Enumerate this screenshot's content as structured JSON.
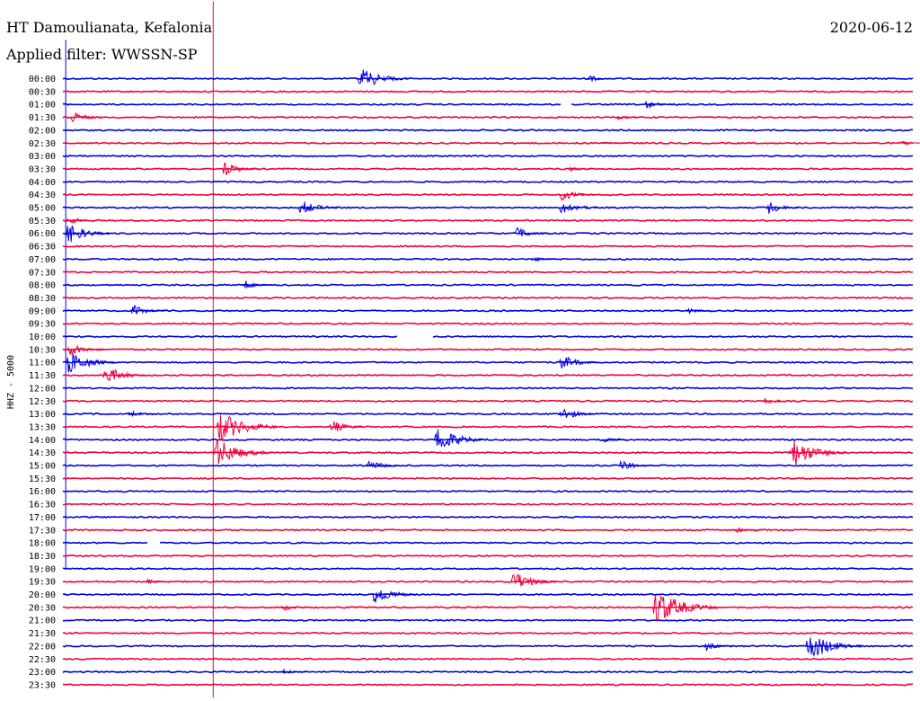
{
  "header": {
    "station": "HT Damoulianata, Kefalonia",
    "filter": "Applied filter: WWSSN-SP",
    "date": "2020-06-12"
  },
  "chart_data": {
    "type": "line",
    "title": "HT Damoulianata, Kefalonia",
    "subtitle": "Applied filter: WWSSN-SP",
    "ylabel": "HHZ - 5000",
    "colors": {
      "even_rows": "#0000e0",
      "odd_rows": "#f0003c"
    },
    "rows": [
      "00:00",
      "00:30",
      "01:00",
      "01:30",
      "02:00",
      "02:30",
      "03:00",
      "03:30",
      "04:00",
      "04:30",
      "05:00",
      "05:30",
      "06:00",
      "06:30",
      "07:00",
      "07:30",
      "08:00",
      "08:30",
      "09:00",
      "09:30",
      "10:00",
      "10:30",
      "11:00",
      "11:30",
      "12:00",
      "12:30",
      "13:00",
      "13:30",
      "14:00",
      "14:30",
      "15:00",
      "15:30",
      "16:00",
      "16:30",
      "17:00",
      "17:30",
      "18:00",
      "18:30",
      "19:00",
      "19:30",
      "20:00",
      "20:30",
      "21:00",
      "21:30",
      "22:00",
      "22:30",
      "23:00",
      "23:30"
    ],
    "time_axis_minutes": [
      0,
      30
    ],
    "events": [
      {
        "row": 0,
        "minute": 10.4,
        "amplitude": 16
      },
      {
        "row": 0,
        "minute": 18.5,
        "amplitude": 5
      },
      {
        "row": 2,
        "minute": 20.5,
        "amplitude": 6
      },
      {
        "row": 3,
        "minute": 0.2,
        "amplitude": 9
      },
      {
        "row": 3,
        "minute": 19.5,
        "amplitude": 4
      },
      {
        "row": 5,
        "minute": 29.5,
        "amplitude": 4
      },
      {
        "row": 5,
        "minute": 19.0,
        "amplitude": 3
      },
      {
        "row": 7,
        "minute": 5.6,
        "amplitude": 10
      },
      {
        "row": 7,
        "minute": 17.8,
        "amplitude": 4
      },
      {
        "row": 9,
        "minute": 17.5,
        "amplitude": 9
      },
      {
        "row": 10,
        "minute": 8.3,
        "amplitude": 11
      },
      {
        "row": 10,
        "minute": 17.5,
        "amplitude": 11
      },
      {
        "row": 10,
        "minute": 24.8,
        "amplitude": 9
      },
      {
        "row": 11,
        "minute": 0.1,
        "amplitude": 6
      },
      {
        "row": 12,
        "minute": 0.1,
        "amplitude": 14
      },
      {
        "row": 12,
        "minute": 15.9,
        "amplitude": 9
      },
      {
        "row": 14,
        "minute": 16.5,
        "amplitude": 4
      },
      {
        "row": 16,
        "minute": 6.3,
        "amplitude": 7
      },
      {
        "row": 18,
        "minute": 2.4,
        "amplitude": 8
      },
      {
        "row": 18,
        "minute": 22.0,
        "amplitude": 4
      },
      {
        "row": 21,
        "minute": 0.1,
        "amplitude": 10
      },
      {
        "row": 22,
        "minute": 0.1,
        "amplitude": 16
      },
      {
        "row": 22,
        "minute": 17.5,
        "amplitude": 11
      },
      {
        "row": 23,
        "minute": 1.4,
        "amplitude": 13
      },
      {
        "row": 25,
        "minute": 24.7,
        "amplitude": 6
      },
      {
        "row": 26,
        "minute": 2.3,
        "amplitude": 5
      },
      {
        "row": 26,
        "minute": 17.5,
        "amplitude": 10
      },
      {
        "row": 27,
        "minute": 5.4,
        "amplitude": 22
      },
      {
        "row": 27,
        "minute": 9.4,
        "amplitude": 9
      },
      {
        "row": 28,
        "minute": 13.1,
        "amplitude": 18
      },
      {
        "row": 28,
        "minute": 19.0,
        "amplitude": 4
      },
      {
        "row": 29,
        "minute": 5.3,
        "amplitude": 20
      },
      {
        "row": 29,
        "minute": 25.6,
        "amplitude": 20
      },
      {
        "row": 30,
        "minute": 10.7,
        "amplitude": 8
      },
      {
        "row": 30,
        "minute": 19.6,
        "amplitude": 8
      },
      {
        "row": 35,
        "minute": 23.7,
        "amplitude": 4
      },
      {
        "row": 39,
        "minute": 15.8,
        "amplitude": 14
      },
      {
        "row": 39,
        "minute": 2.9,
        "amplitude": 4
      },
      {
        "row": 40,
        "minute": 10.9,
        "amplitude": 14
      },
      {
        "row": 41,
        "minute": 20.8,
        "amplitude": 24
      },
      {
        "row": 41,
        "minute": 7.7,
        "amplitude": 5
      },
      {
        "row": 44,
        "minute": 22.6,
        "amplitude": 6
      },
      {
        "row": 44,
        "minute": 26.2,
        "amplitude": 20
      },
      {
        "row": 46,
        "minute": 7.7,
        "amplitude": 4
      }
    ],
    "gaps": [
      {
        "row": 2,
        "start_minute": 17.6,
        "end_minute": 17.9
      },
      {
        "row": 20,
        "start_minute": 11.8,
        "end_minute": 13.0
      },
      {
        "row": 36,
        "start_minute": 3.0,
        "end_minute": 3.4
      }
    ],
    "reference_lines": [
      {
        "color": "#0000e0",
        "minute": 0.1,
        "from_row": -3,
        "to_row": 38
      },
      {
        "color": "#f0003c",
        "minute": 5.3,
        "from_row": -6,
        "to_row": 48
      }
    ]
  }
}
